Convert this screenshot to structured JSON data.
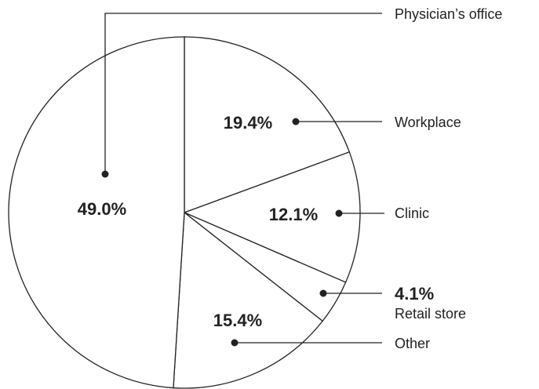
{
  "chart_data": {
    "type": "pie",
    "categories": [
      "Workplace",
      "Clinic",
      "Retail store",
      "Other",
      "Physician’s office"
    ],
    "values": [
      19.4,
      12.1,
      4.1,
      15.4,
      49.0
    ],
    "value_labels": [
      "19.4%",
      "12.1%",
      "4.1%",
      "15.4%",
      "49.0%"
    ],
    "color": "#ffffff"
  }
}
